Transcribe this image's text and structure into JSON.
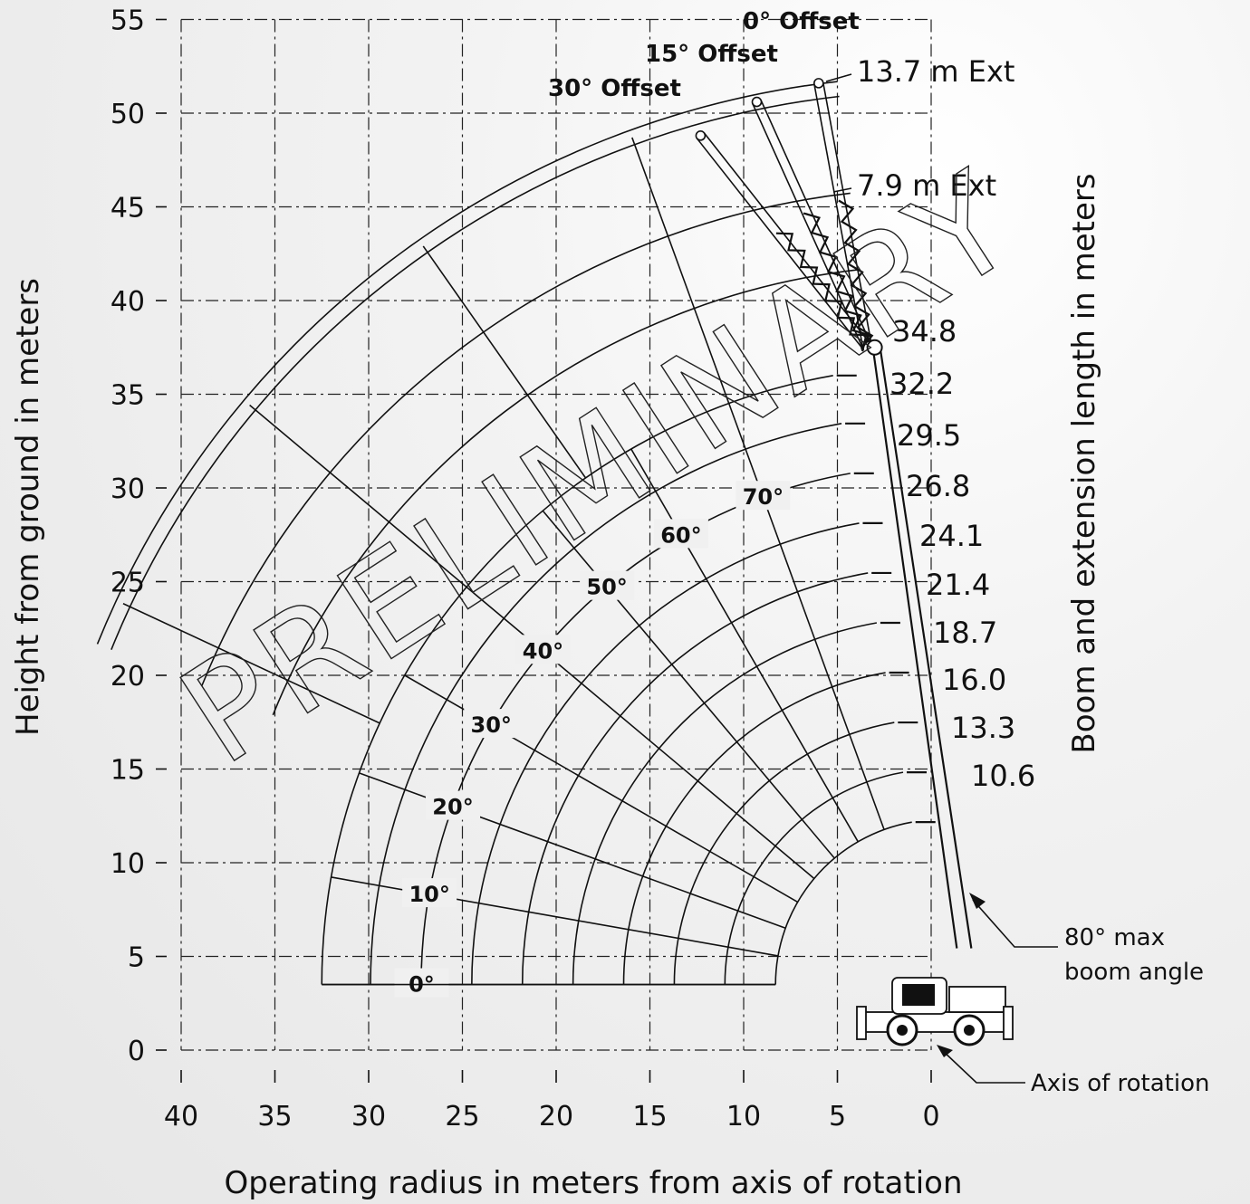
{
  "chart_data": {
    "type": "range-diagram",
    "xlabel": "Operating radius in meters from axis of rotation",
    "ylabel": "Height from ground in meters",
    "y2label": "Boom and extension length in meters",
    "x_ticks": [
      40,
      35,
      30,
      25,
      20,
      15,
      10,
      5,
      0
    ],
    "y_ticks": [
      0,
      5,
      10,
      15,
      20,
      25,
      30,
      35,
      40,
      45,
      50,
      55
    ],
    "xlim": [
      40,
      0
    ],
    "ylim": [
      0,
      55
    ],
    "grid": true,
    "boom_pivot": {
      "radius": -0.5,
      "height": 3.5
    },
    "boom_lengths": [
      "10.6",
      "13.3",
      "16.0",
      "18.7",
      "21.4",
      "24.1",
      "26.8",
      "29.5",
      "32.2",
      "34.8"
    ],
    "boom_arc_radii": [
      8.8,
      11.5,
      14.2,
      16.9,
      19.6,
      22.3,
      25.0,
      27.7,
      30.4,
      33.0
    ],
    "boom_angles": [
      "0°",
      "10°",
      "20°",
      "30°",
      "40°",
      "50°",
      "60°",
      "70°"
    ],
    "boom_angle_values": [
      0,
      10,
      20,
      30,
      40,
      50,
      60,
      70
    ],
    "boom_tip_at_80": [
      3.4,
      37.5
    ],
    "max_boom_angle": 80,
    "extensions": [
      {
        "label": "7.9 m Ext",
        "outer_radius": 42.5
      },
      {
        "label": "13.7 m Ext",
        "outer_radius": 48.5
      }
    ],
    "offsets": [
      {
        "label": "0° Offset",
        "tip": [
          6.0,
          51.6
        ],
        "ext_joint": [
          4.6,
          45.4
        ]
      },
      {
        "label": "15° Offset",
        "tip": [
          9.3,
          50.6
        ],
        "ext_joint": [
          6.5,
          44.8
        ]
      },
      {
        "label": "30° Offset",
        "tip": [
          12.3,
          48.8
        ],
        "ext_joint": [
          8.0,
          43.8
        ]
      }
    ],
    "annotations": [
      "80° max boom angle",
      "Axis of rotation"
    ],
    "watermark": "PRELIMINARY"
  }
}
